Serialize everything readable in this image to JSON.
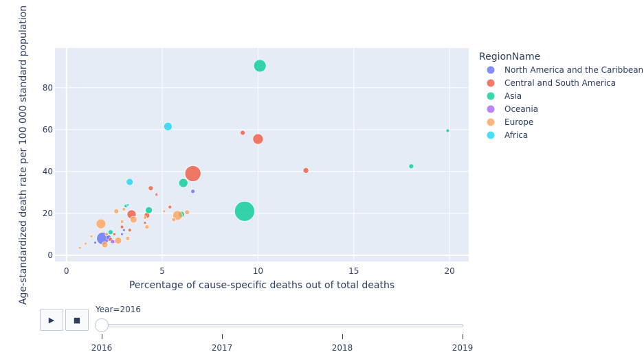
{
  "chart_data": {
    "type": "scatter",
    "xlabel": "Percentage of cause-specific deaths out of total deaths",
    "ylabel": "Age-standardized death rate per 100 000 standard population",
    "xlim": [
      -0.6,
      21.0
    ],
    "ylim": [
      -3,
      99
    ],
    "xticks": [
      0,
      5,
      10,
      15,
      20
    ],
    "yticks": [
      0,
      20,
      40,
      60,
      80
    ],
    "grid": true,
    "legend_title": "RegionName",
    "legend_position": "right",
    "series": [
      {
        "name": "North America and the Caribbean",
        "color": "#636efa",
        "points": [
          [
            1.9,
            8.0,
            16
          ],
          [
            6.6,
            30.5,
            4
          ],
          [
            2.5,
            6.5,
            3
          ],
          [
            2.2,
            8.5,
            5
          ],
          [
            3.0,
            12.0,
            2
          ],
          [
            1.5,
            6.0,
            2
          ],
          [
            2.9,
            10.0,
            2
          ]
        ]
      },
      {
        "name": "Central and South America",
        "color": "#EF553B",
        "points": [
          [
            6.6,
            39.0,
            21
          ],
          [
            10.0,
            55.5,
            13
          ],
          [
            12.5,
            40.5,
            6
          ],
          [
            9.2,
            58.5,
            5
          ],
          [
            4.4,
            32.0,
            5
          ],
          [
            3.4,
            19.5,
            11
          ],
          [
            4.2,
            19.0,
            6
          ],
          [
            5.4,
            23.0,
            3
          ],
          [
            2.9,
            13.5,
            3
          ],
          [
            2.3,
            7.5,
            4
          ],
          [
            3.3,
            12.0,
            3
          ],
          [
            4.7,
            29.0,
            2
          ],
          [
            2.5,
            10.0,
            2
          ],
          [
            4.1,
            15.5,
            2
          ]
        ]
      },
      {
        "name": "Asia",
        "color": "#00cc96",
        "points": [
          [
            10.1,
            90.5,
            16
          ],
          [
            9.3,
            21.0,
            27
          ],
          [
            18.0,
            42.5,
            5
          ],
          [
            19.9,
            59.5,
            3
          ],
          [
            6.1,
            34.5,
            11
          ],
          [
            4.3,
            21.5,
            8
          ],
          [
            6.0,
            19.5,
            7
          ],
          [
            2.3,
            11.0,
            5
          ],
          [
            3.1,
            23.5,
            3
          ]
        ]
      },
      {
        "name": "Oceania",
        "color": "#ab63fa",
        "points": [
          [
            2.4,
            6.5,
            4
          ]
        ]
      },
      {
        "name": "Europe",
        "color": "#FFA15A",
        "points": [
          [
            1.8,
            15.0,
            12
          ],
          [
            5.8,
            19.0,
            12
          ],
          [
            2.0,
            5.0,
            7
          ],
          [
            2.7,
            7.0,
            8
          ],
          [
            3.5,
            17.0,
            8
          ],
          [
            2.6,
            21.0,
            5
          ],
          [
            6.3,
            20.5,
            5
          ],
          [
            4.2,
            13.5,
            4
          ],
          [
            5.6,
            17.0,
            4
          ],
          [
            3.2,
            8.0,
            4
          ],
          [
            1.0,
            5.5,
            2
          ],
          [
            2.1,
            10.0,
            3
          ],
          [
            3.0,
            22.0,
            3
          ],
          [
            4.1,
            18.0,
            3
          ],
          [
            1.3,
            9.0,
            2
          ],
          [
            2.9,
            16.0,
            3
          ],
          [
            0.7,
            3.5,
            2
          ],
          [
            5.1,
            21.0,
            2
          ]
        ]
      },
      {
        "name": "Africa",
        "color": "#19d3f3",
        "points": [
          [
            5.3,
            61.5,
            10
          ],
          [
            3.3,
            35.0,
            8
          ],
          [
            3.2,
            24.0,
            2
          ]
        ]
      }
    ]
  },
  "slider": {
    "current_label": "Year=2016",
    "steps": [
      "2016",
      "2017",
      "2018",
      "2019"
    ],
    "play_label": "▶",
    "stop_label": "■"
  }
}
